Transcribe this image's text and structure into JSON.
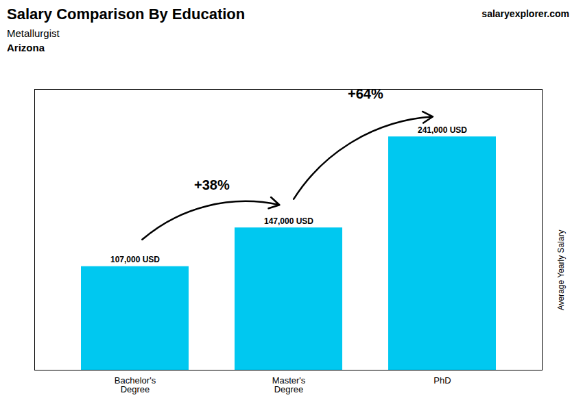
{
  "chart_data": {
    "type": "bar",
    "title": "Salary Comparison By Education",
    "subtitle": "Metallurgist",
    "location": "Arizona",
    "watermark": "salaryexplorer.com",
    "ylabel": "Average Yearly Salary",
    "categories": [
      "Bachelor's\nDegree",
      "Master's\nDegree",
      "PhD"
    ],
    "values": [
      107000,
      147000,
      241000
    ],
    "value_labels": [
      "107,000 USD",
      "147,000 USD",
      "241,000 USD"
    ],
    "color": "#00c8f0",
    "ylim": [
      0,
      290000
    ],
    "tick_labels": "x",
    "data_labels": true,
    "annotations": [
      {
        "text": "+38%",
        "from": "Bachelor's\nDegree",
        "to": "Master's\nDegree"
      },
      {
        "text": "+64%",
        "from": "Master's\nDegree",
        "to": "PhD"
      }
    ]
  }
}
